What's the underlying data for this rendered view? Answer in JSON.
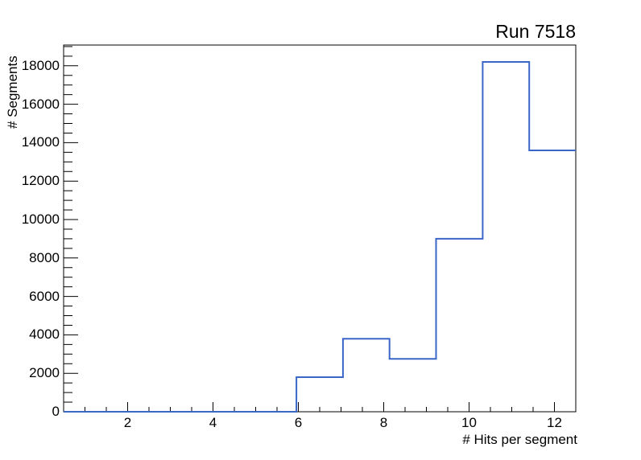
{
  "title": "Run 7518",
  "chart_data": {
    "type": "bar",
    "style": "step-histogram",
    "title": "Run 7518",
    "xlabel": "# Hits per segment",
    "ylabel": "# Segments",
    "xlim": [
      0.5,
      12.5
    ],
    "ylim": [
      0,
      19080
    ],
    "n_bins": 11,
    "bin_edges": [
      0.5,
      1.591,
      2.682,
      3.773,
      4.864,
      5.955,
      7.045,
      8.136,
      9.227,
      10.318,
      11.409,
      12.5
    ],
    "bin_values": [
      0,
      0,
      0,
      0,
      0,
      1800,
      3800,
      2750,
      9000,
      18200,
      13600
    ],
    "x_major_ticks": [
      2,
      4,
      6,
      8,
      10,
      12
    ],
    "x_tick_labels": [
      "2",
      "4",
      "6",
      "8",
      "10",
      "12"
    ],
    "x_minor_step": 0.5,
    "y_major_ticks": [
      0,
      2000,
      4000,
      6000,
      8000,
      10000,
      12000,
      14000,
      16000,
      18000
    ],
    "y_tick_labels": [
      "0",
      "2000",
      "4000",
      "6000",
      "8000",
      "10000",
      "12000",
      "14000",
      "16000",
      "18000"
    ],
    "y_minor_step": 500,
    "grid": false,
    "legend": null,
    "line_color": "#3a66c8",
    "axis_color": "#000000"
  }
}
